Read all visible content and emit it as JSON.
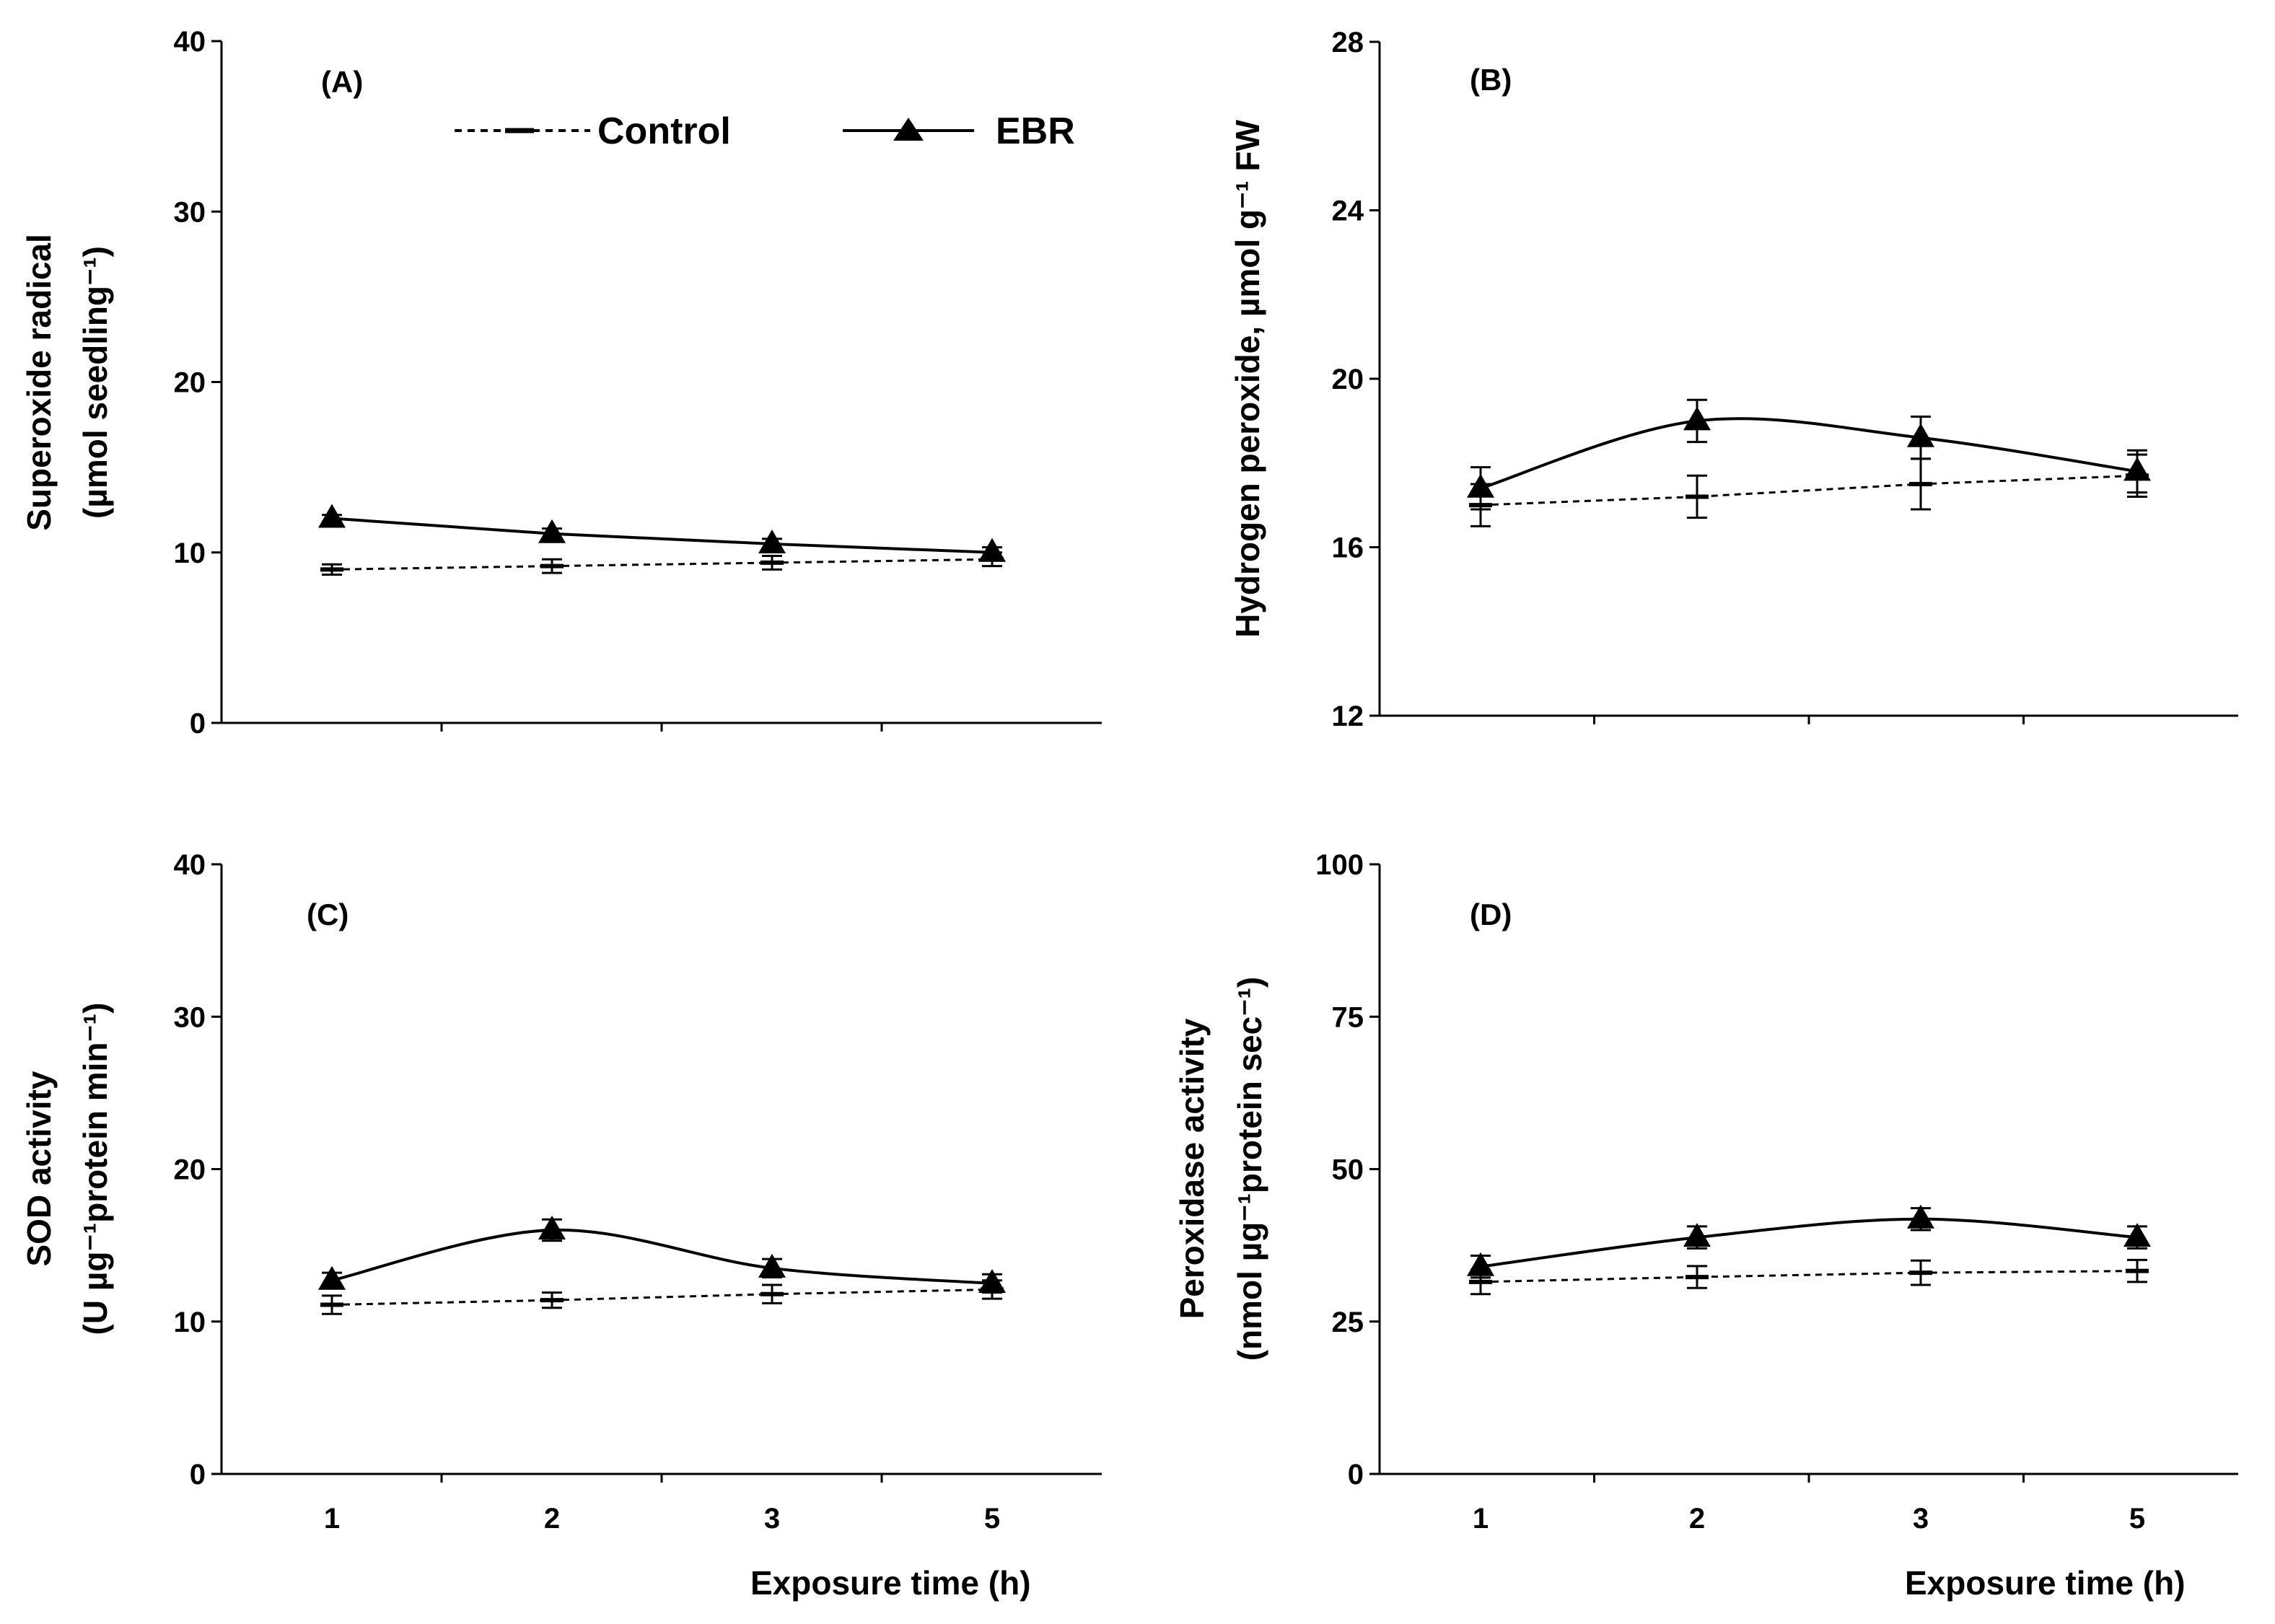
{
  "chart_data": [
    {
      "type": "line",
      "panel_label": "(A)",
      "categories": [
        "1",
        "2",
        "3",
        "5"
      ],
      "ylabel_line1": "Superoxide radical",
      "ylabel_line2": "(µmol seedling⁻¹)",
      "xlabel": "",
      "ylim": [
        0,
        40
      ],
      "yticks": [
        "0",
        "10",
        "20",
        "30",
        "40"
      ],
      "series": [
        {
          "name": "Control",
          "values": [
            9.0,
            9.2,
            9.4,
            9.6
          ],
          "errors": [
            0.3,
            0.4,
            0.4,
            0.4
          ]
        },
        {
          "name": "EBR",
          "values": [
            12.0,
            11.1,
            10.5,
            10.0
          ],
          "errors": [
            0.2,
            0.3,
            0.3,
            0.3
          ]
        }
      ]
    },
    {
      "type": "line",
      "panel_label": "(B)",
      "categories": [
        "1",
        "2",
        "3",
        "5"
      ],
      "ylabel_line1": "Hydrogen peroxide, µmol g⁻¹ FW",
      "ylabel_line2": "",
      "xlabel": "",
      "ylim": [
        12,
        28
      ],
      "yticks": [
        "12",
        "16",
        "20",
        "24",
        "28"
      ],
      "series": [
        {
          "name": "Control",
          "values": [
            17.0,
            17.2,
            17.5,
            17.7
          ],
          "errors": [
            0.5,
            0.5,
            0.6,
            0.5
          ]
        },
        {
          "name": "EBR",
          "values": [
            17.4,
            19.0,
            18.6,
            17.8
          ],
          "errors": [
            0.5,
            0.5,
            0.5,
            0.5
          ]
        }
      ]
    },
    {
      "type": "line",
      "panel_label": "(C)",
      "categories": [
        "1",
        "2",
        "3",
        "5"
      ],
      "ylabel_line1": "SOD activity",
      "ylabel_line2": "(U µg⁻¹protein min⁻¹)",
      "xlabel": "Exposure time (h)",
      "ylim": [
        0,
        40
      ],
      "yticks": [
        "0",
        "10",
        "20",
        "30",
        "40"
      ],
      "series": [
        {
          "name": "Control",
          "values": [
            11.1,
            11.4,
            11.8,
            12.1
          ],
          "errors": [
            0.6,
            0.5,
            0.6,
            0.6
          ]
        },
        {
          "name": "EBR",
          "values": [
            12.7,
            16.0,
            13.5,
            12.5
          ],
          "errors": [
            0.5,
            0.7,
            0.6,
            0.6
          ]
        }
      ]
    },
    {
      "type": "line",
      "panel_label": "(D)",
      "categories": [
        "1",
        "2",
        "3",
        "5"
      ],
      "ylabel_line1": "Peroxidase activity",
      "ylabel_line2": "(nmol µg⁻¹protein sec⁻¹)",
      "xlabel": "Exposure time (h)",
      "ylim": [
        0,
        100
      ],
      "yticks": [
        "0",
        "25",
        "50",
        "75",
        "100"
      ],
      "series": [
        {
          "name": "Control",
          "values": [
            31.5,
            32.3,
            33.0,
            33.3
          ],
          "errors": [
            2.0,
            1.8,
            2.0,
            1.8
          ]
        },
        {
          "name": "EBR",
          "values": [
            34.0,
            38.8,
            41.8,
            38.8
          ],
          "errors": [
            1.8,
            1.8,
            1.8,
            1.8
          ]
        }
      ]
    }
  ],
  "legend": {
    "control": "Control",
    "ebr": "EBR"
  }
}
